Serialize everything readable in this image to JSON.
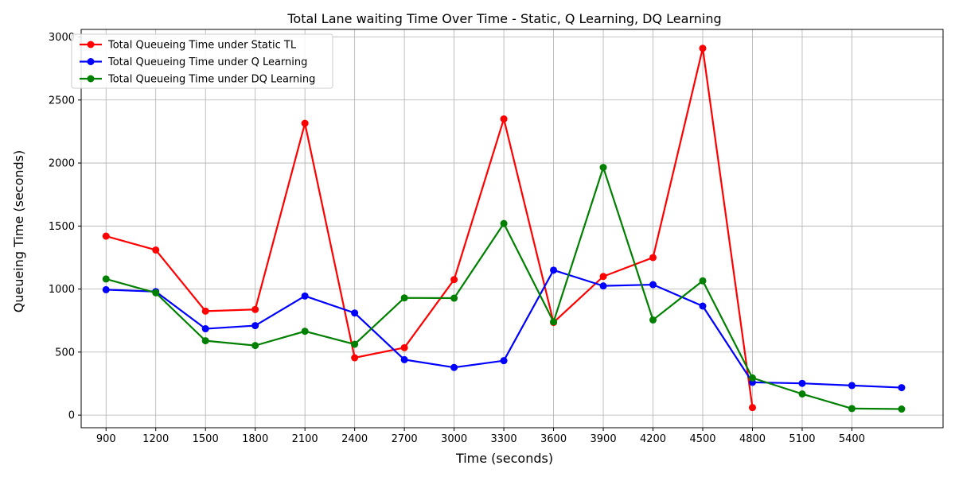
{
  "chart_data": {
    "type": "line",
    "title": "Total Lane waiting Time Over Time - Static, Q Learning, DQ Learning",
    "xlabel": "Time (seconds)",
    "ylabel": "Queueing Time (seconds)",
    "x": [
      900,
      1200,
      1500,
      1800,
      2100,
      2400,
      2700,
      3000,
      3300,
      3600,
      3900,
      4200,
      4500,
      4800,
      5100,
      5400,
      5700
    ],
    "x_tick_labels": [
      "900",
      "1200",
      "1500",
      "1800",
      "2100",
      "2400",
      "2700",
      "3000",
      "3300",
      "3600",
      "3900",
      "4200",
      "4500",
      "4800",
      "5100",
      "5400"
    ],
    "xlim": [
      750,
      5950
    ],
    "ylim": [
      -100,
      3060
    ],
    "y_ticks": [
      0,
      500,
      1000,
      1500,
      2000,
      2500,
      3000
    ],
    "y_tick_labels": [
      "0",
      "500",
      "1000",
      "1500",
      "2000",
      "2500",
      "3000"
    ],
    "grid": true,
    "legend_position": "top-left",
    "series": [
      {
        "name": "Total Queueing Time under Static TL",
        "color": "#ff0000",
        "values": [
          1420,
          1310,
          825,
          838,
          2315,
          455,
          535,
          1075,
          2350,
          735,
          1100,
          1250,
          2910,
          60,
          null,
          null,
          null
        ]
      },
      {
        "name": "Total Queueing Time under Q Learning",
        "color": "#0000ff",
        "values": [
          995,
          980,
          685,
          710,
          945,
          810,
          440,
          378,
          432,
          1150,
          1025,
          1035,
          865,
          260,
          252,
          235,
          218
        ]
      },
      {
        "name": "Total Queueing Time under DQ Learning",
        "color": "#008000",
        "values": [
          1080,
          970,
          590,
          552,
          665,
          562,
          930,
          928,
          1520,
          740,
          1965,
          755,
          1065,
          295,
          168,
          52,
          48
        ]
      }
    ]
  }
}
